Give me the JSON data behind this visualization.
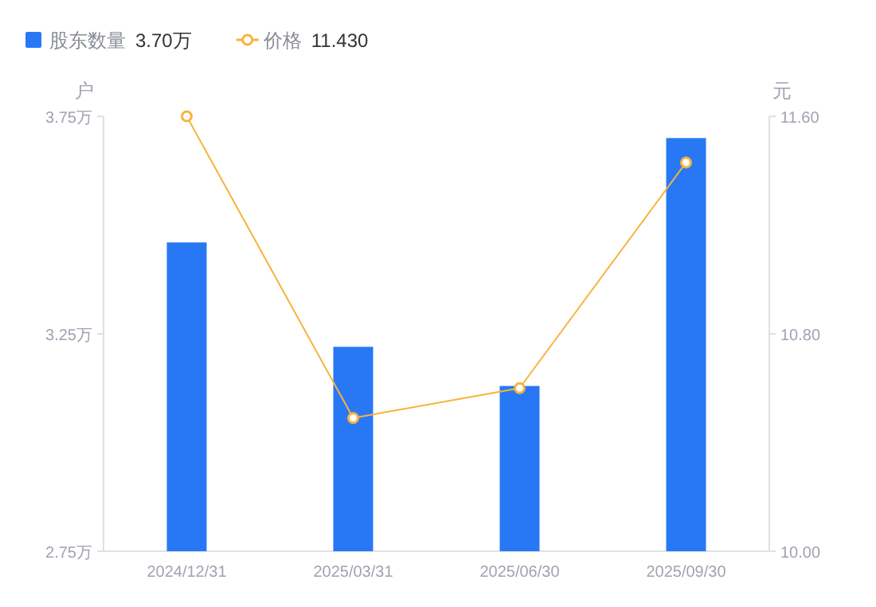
{
  "chart_data": {
    "type": "bar",
    "categories": [
      "2024/12/31",
      "2025/03/31",
      "2025/06/30",
      "2025/09/30"
    ],
    "series": [
      {
        "name": "股东数量",
        "color": "#2878f5",
        "values": [
          3.46,
          3.22,
          3.13,
          3.7
        ]
      },
      {
        "name": "价格",
        "type": "line",
        "axis": "y2",
        "color": "#f7b33c",
        "marker": "circle",
        "values": [
          11.6,
          10.49,
          10.6,
          11.43
        ]
      }
    ],
    "ylabel": "户",
    "y2label": "元",
    "ylim": [
      2.75,
      3.75
    ],
    "yticks": [
      {
        "value": 2.75,
        "label": "2.75万"
      },
      {
        "value": 3.25,
        "label": "3.25万"
      },
      {
        "value": 3.75,
        "label": "3.75万"
      }
    ],
    "y2lim": [
      10.0,
      11.6
    ],
    "y2ticks": [
      {
        "value": 10.0,
        "label": "10.00"
      },
      {
        "value": 10.8,
        "label": "10.80"
      },
      {
        "value": 11.6,
        "label": "11.60"
      }
    ],
    "annotations": [
      "3.70万",
      "11.430"
    ],
    "legend": "top left"
  }
}
